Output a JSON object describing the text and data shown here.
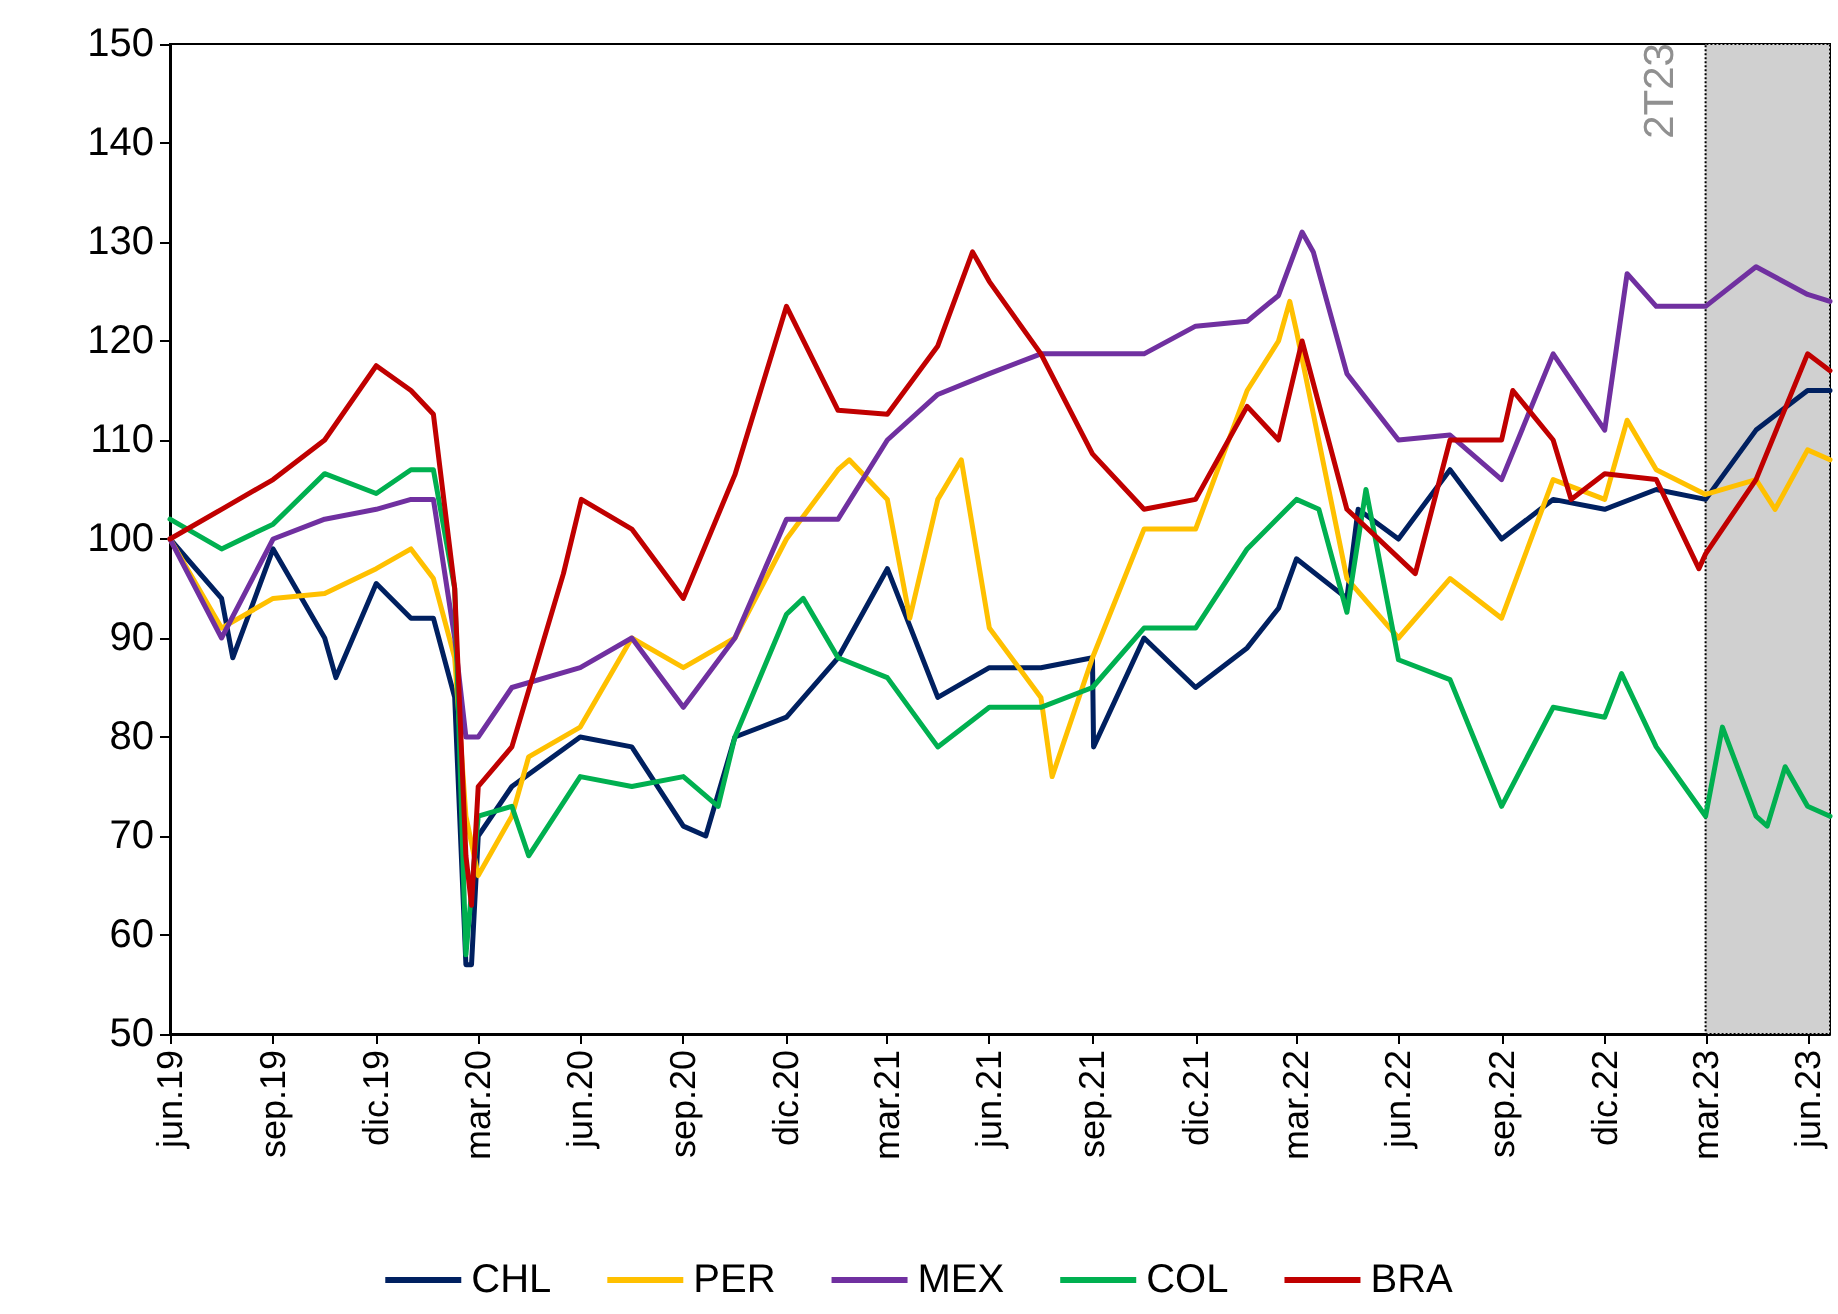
{
  "chart_data": {
    "type": "line",
    "legend": "bottom",
    "grid": false,
    "marker": "none",
    "line_style": "solid",
    "xlim": [
      "2019-06-30",
      "2023-07-20"
    ],
    "ylim": [
      50,
      150
    ],
    "yticks": [
      50,
      60,
      70,
      80,
      90,
      100,
      110,
      120,
      130,
      140,
      150
    ],
    "xticks": [
      {
        "value": "2019-06-30",
        "label": "jun.19"
      },
      {
        "value": "2019-09-30",
        "label": "sep.19"
      },
      {
        "value": "2019-12-31",
        "label": "dic.19"
      },
      {
        "value": "2020-03-31",
        "label": "mar.20"
      },
      {
        "value": "2020-06-30",
        "label": "jun.20"
      },
      {
        "value": "2020-09-30",
        "label": "sep.20"
      },
      {
        "value": "2020-12-31",
        "label": "dic.20"
      },
      {
        "value": "2021-03-31",
        "label": "mar.21"
      },
      {
        "value": "2021-06-30",
        "label": "jun.21"
      },
      {
        "value": "2021-09-30",
        "label": "sep.21"
      },
      {
        "value": "2021-12-31",
        "label": "dic.21"
      },
      {
        "value": "2022-03-31",
        "label": "mar.22"
      },
      {
        "value": "2022-06-30",
        "label": "jun.22"
      },
      {
        "value": "2022-09-30",
        "label": "sep.22"
      },
      {
        "value": "2022-12-31",
        "label": "dic.22"
      },
      {
        "value": "2023-03-31",
        "label": "mar.23"
      },
      {
        "value": "2023-06-30",
        "label": "jun.23"
      }
    ],
    "bands": [
      {
        "axis": "x",
        "from": "2023-03-31",
        "to": "2023-07-20",
        "label": "2T23",
        "color": "#d0d0d0"
      }
    ],
    "series": [
      {
        "name": "CHL",
        "color": "#002060",
        "x": [
          "2019-06-30",
          "2019-08-15",
          "2019-08-25",
          "2019-09-30",
          "2019-11-15",
          "2019-11-25",
          "2019-12-31",
          "2020-01-31",
          "2020-02-20",
          "2020-03-10",
          "2020-03-20",
          "2020-03-25",
          "2020-03-31",
          "2020-04-30",
          "2020-06-30",
          "2020-08-15",
          "2020-09-30",
          "2020-10-20",
          "2020-11-15",
          "2020-12-31",
          "2021-02-15",
          "2021-03-31",
          "2021-05-15",
          "2021-06-30",
          "2021-08-15",
          "2021-09-30",
          "2021-10-01",
          "2021-11-15",
          "2021-12-31",
          "2022-02-15",
          "2022-03-15",
          "2022-03-31",
          "2022-05-15",
          "2022-05-25",
          "2022-06-30",
          "2022-08-15",
          "2022-09-30",
          "2022-11-15",
          "2022-12-31",
          "2023-02-15",
          "2023-03-31",
          "2023-05-15",
          "2023-06-30",
          "2023-07-20"
        ],
        "values": [
          100,
          94,
          88,
          99,
          90,
          86,
          95.5,
          92,
          92,
          84,
          57,
          57,
          70,
          75,
          80,
          79,
          71,
          70,
          80,
          82,
          88,
          97,
          84,
          87,
          87,
          88,
          79,
          90,
          85,
          89,
          93,
          98,
          94,
          103,
          100,
          107,
          100,
          104,
          103,
          105,
          104,
          111,
          115,
          115
        ]
      },
      {
        "name": "PER",
        "color": "#ffc000",
        "x": [
          "2019-06-30",
          "2019-08-15",
          "2019-09-30",
          "2019-11-15",
          "2019-12-31",
          "2020-01-31",
          "2020-02-20",
          "2020-03-10",
          "2020-03-20",
          "2020-03-31",
          "2020-04-30",
          "2020-05-15",
          "2020-06-30",
          "2020-08-15",
          "2020-09-30",
          "2020-11-15",
          "2020-12-31",
          "2021-02-15",
          "2021-02-25",
          "2021-03-31",
          "2021-04-20",
          "2021-05-15",
          "2021-06-05",
          "2021-06-30",
          "2021-08-15",
          "2021-08-25",
          "2021-09-30",
          "2021-11-15",
          "2021-12-31",
          "2022-02-15",
          "2022-03-15",
          "2022-03-25",
          "2022-03-31",
          "2022-05-15",
          "2022-06-30",
          "2022-08-15",
          "2022-09-30",
          "2022-11-15",
          "2022-12-31",
          "2023-01-20",
          "2023-02-15",
          "2023-03-31",
          "2023-05-15",
          "2023-06-01",
          "2023-06-30",
          "2023-07-20"
        ],
        "values": [
          100,
          91,
          94,
          94.5,
          97,
          99,
          96,
          88,
          72,
          66,
          72,
          78,
          81,
          90,
          87,
          90,
          100,
          107,
          108,
          104,
          92,
          104,
          108,
          91,
          84,
          76,
          88,
          101,
          101,
          115,
          120,
          124,
          121,
          96,
          90,
          96,
          92,
          106,
          104,
          112,
          107,
          104.5,
          106,
          103,
          109,
          108
        ]
      },
      {
        "name": "MEX",
        "color": "#7030a0",
        "x": [
          "2019-06-30",
          "2019-08-15",
          "2019-09-30",
          "2019-11-15",
          "2019-12-31",
          "2020-01-31",
          "2020-02-20",
          "2020-03-10",
          "2020-03-20",
          "2020-03-31",
          "2020-04-30",
          "2020-06-30",
          "2020-08-15",
          "2020-09-30",
          "2020-11-15",
          "2020-12-31",
          "2021-02-15",
          "2021-03-31",
          "2021-05-15",
          "2021-06-30",
          "2021-08-15",
          "2021-09-30",
          "2021-11-15",
          "2021-12-31",
          "2022-02-15",
          "2022-03-15",
          "2022-04-05",
          "2022-04-15",
          "2022-05-15",
          "2022-06-30",
          "2022-08-15",
          "2022-09-30",
          "2022-11-15",
          "2022-12-31",
          "2023-01-20",
          "2023-02-15",
          "2023-03-31",
          "2023-05-15",
          "2023-06-30",
          "2023-07-20"
        ],
        "values": [
          100,
          90,
          100,
          102,
          103,
          104,
          104,
          90,
          80,
          80,
          85,
          87,
          90,
          83,
          90,
          102,
          102,
          110,
          114.6,
          116.7,
          118.7,
          118.7,
          118.7,
          121.5,
          122,
          124.6,
          131,
          129,
          116.7,
          110,
          110.5,
          106,
          118.7,
          111,
          126.8,
          123.5,
          123.5,
          127.5,
          124.7,
          124
        ]
      },
      {
        "name": "COL",
        "color": "#00b050",
        "x": [
          "2019-06-30",
          "2019-08-15",
          "2019-09-30",
          "2019-11-15",
          "2019-12-31",
          "2020-01-31",
          "2020-02-20",
          "2020-03-10",
          "2020-03-20",
          "2020-03-31",
          "2020-04-30",
          "2020-05-15",
          "2020-06-30",
          "2020-08-15",
          "2020-09-30",
          "2020-10-31",
          "2020-11-15",
          "2020-12-31",
          "2021-01-15",
          "2021-02-15",
          "2021-03-31",
          "2021-05-15",
          "2021-06-30",
          "2021-08-15",
          "2021-09-30",
          "2021-11-15",
          "2021-12-31",
          "2022-02-15",
          "2022-03-31",
          "2022-04-20",
          "2022-05-15",
          "2022-06-01",
          "2022-06-30",
          "2022-08-15",
          "2022-09-30",
          "2022-11-15",
          "2022-12-31",
          "2023-01-15",
          "2023-02-15",
          "2023-03-31",
          "2023-04-15",
          "2023-05-15",
          "2023-05-25",
          "2023-06-10",
          "2023-06-30",
          "2023-07-20"
        ],
        "values": [
          102,
          99,
          101.5,
          106.6,
          104.6,
          107,
          107,
          95,
          58,
          72,
          73,
          68,
          76,
          75,
          76,
          73,
          80,
          92.4,
          94,
          88,
          86,
          79,
          83,
          83,
          85,
          91,
          91,
          99,
          104,
          103,
          92.6,
          105,
          87.8,
          85.8,
          73,
          83,
          82,
          86.4,
          79,
          72,
          81,
          72,
          71,
          77,
          73,
          72
        ]
      },
      {
        "name": "BRA",
        "color": "#c00000",
        "x": [
          "2019-06-30",
          "2019-08-15",
          "2019-09-30",
          "2019-11-15",
          "2019-12-31",
          "2020-01-31",
          "2020-02-20",
          "2020-03-10",
          "2020-03-20",
          "2020-03-25",
          "2020-03-31",
          "2020-04-30",
          "2020-06-15",
          "2020-07-01",
          "2020-08-15",
          "2020-09-30",
          "2020-11-15",
          "2020-12-31",
          "2021-02-15",
          "2021-03-31",
          "2021-05-15",
          "2021-06-15",
          "2021-06-30",
          "2021-08-15",
          "2021-09-30",
          "2021-11-15",
          "2021-12-31",
          "2022-02-15",
          "2022-03-15",
          "2022-04-05",
          "2022-05-15",
          "2022-07-15",
          "2022-08-15",
          "2022-09-30",
          "2022-10-10",
          "2022-11-15",
          "2022-12-01",
          "2022-12-31",
          "2023-02-15",
          "2023-03-25",
          "2023-03-31",
          "2023-05-15",
          "2023-06-30",
          "2023-07-20"
        ],
        "values": [
          100,
          103,
          106,
          110,
          117.5,
          115,
          112.6,
          95,
          68,
          63,
          75,
          79,
          96.5,
          104,
          101,
          94,
          106.5,
          123.5,
          113,
          112.6,
          119.5,
          129,
          126,
          118.7,
          108.6,
          103,
          104,
          113.4,
          110,
          120,
          103,
          96.5,
          110,
          110,
          115,
          110,
          104,
          106.6,
          106,
          97,
          98.5,
          106,
          118.7,
          117
        ]
      }
    ]
  }
}
